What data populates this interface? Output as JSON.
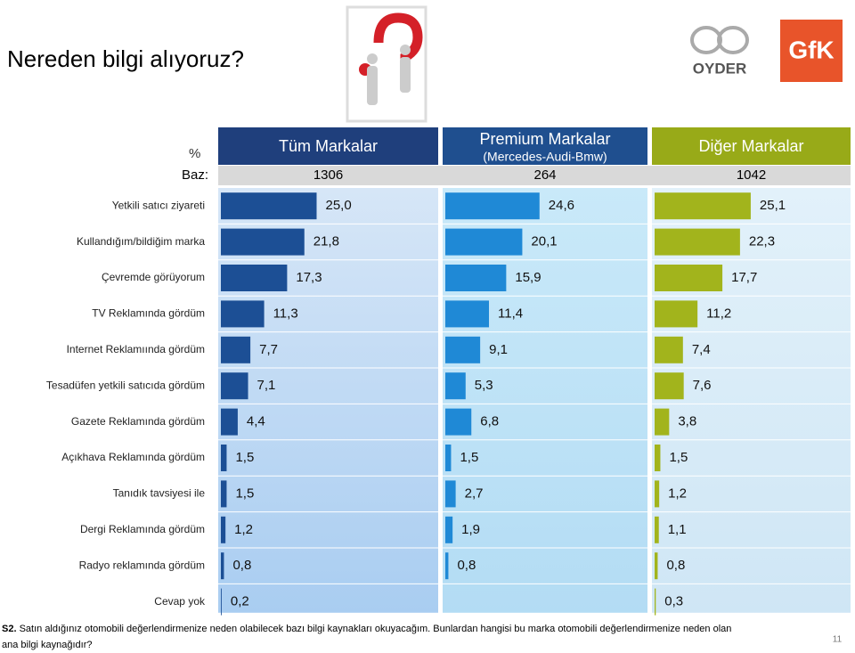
{
  "title": "Nereden bilgi alıyoruz?",
  "unit_label": "%",
  "base_label": "Baz:",
  "logos": {
    "oyder": "OYDER",
    "gfk": "GfK"
  },
  "chart_data": [
    {
      "type": "bar",
      "title": "Tüm Markalar",
      "base": 1306,
      "color": "#1c4f95",
      "categories": [
        "Yetkili satıcı ziyareti",
        "Kullandığım/bildiğim marka",
        "Çevremde görüyorum",
        "TV Reklamında gördüm",
        "Internet Reklamıında gördüm",
        "Tesadüfen yetkili satıcıda gördüm",
        "Gazete Reklamında gördüm",
        "Açıkhava  Reklamında gördüm",
        "Tanıdık tavsiyesi ile",
        "Dergi Reklamında gördüm",
        "Radyo reklamında gördüm",
        "Cevap yok"
      ],
      "values": [
        25.0,
        21.8,
        17.3,
        11.3,
        7.7,
        7.1,
        4.4,
        1.5,
        1.5,
        1.2,
        0.8,
        0.2
      ],
      "value_labels": [
        "25,0",
        "21,8",
        "17,3",
        "11,3",
        "7,7",
        "7,1",
        "4,4",
        "1,5",
        "1,5",
        "1,2",
        "0,8",
        "0,2"
      ]
    },
    {
      "type": "bar",
      "title": "Premium Markalar",
      "subtitle": "(Mercedes-Audi-Bmw)",
      "base": 264,
      "color": "#1f89d6",
      "values": [
        24.6,
        20.1,
        15.9,
        11.4,
        9.1,
        5.3,
        6.8,
        1.5,
        2.7,
        1.9,
        0.8,
        null
      ],
      "value_labels": [
        "24,6",
        "20,1",
        "15,9",
        "11,4",
        "9,1",
        "5,3",
        "6,8",
        "1,5",
        "2,7",
        "1,9",
        "0,8",
        null
      ]
    },
    {
      "type": "bar",
      "title": "Diğer Markalar",
      "base": 1042,
      "color": "#a2b41c",
      "values": [
        25.1,
        22.3,
        17.7,
        11.2,
        7.4,
        7.6,
        3.8,
        1.5,
        1.2,
        1.1,
        0.8,
        0.3
      ],
      "value_labels": [
        "25,1",
        "22,3",
        "17,7",
        "11,2",
        "7,4",
        "7,6",
        "3,8",
        "1,5",
        "1,2",
        "1,1",
        "0,8",
        "0,3"
      ]
    }
  ],
  "footnote": {
    "label": "S2.",
    "text": " Satın aldığınız otomobili değerlendirmenize neden olabilecek bazı bilgi kaynakları okuyacağım. Bunlardan hangisi bu marka otomobili değerlendirmenize neden olan",
    "text2": "ana bilgi kaynağıdır?"
  },
  "page_number": 11
}
